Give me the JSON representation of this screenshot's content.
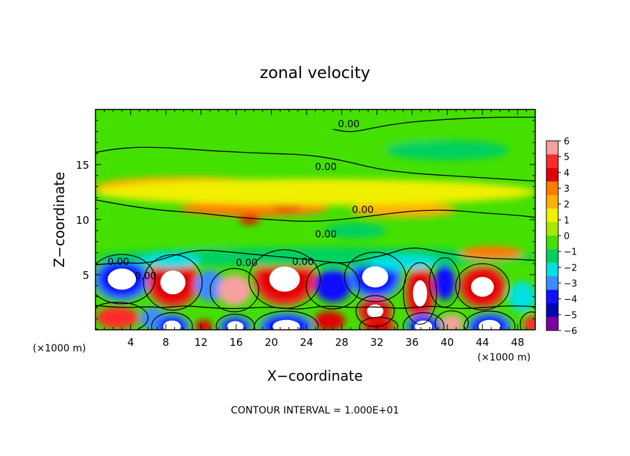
{
  "chart_data": {
    "type": "heatmap",
    "title": "zonal velocity",
    "xlabel": "X−coordinate",
    "ylabel": "Z−coordinate",
    "x_unit_left": "(×1000 m)",
    "x_unit_right": "(×1000 m)",
    "footer": "CONTOUR INTERVAL = 1.000E+01",
    "xlim": [
      0,
      50
    ],
    "ylim": [
      0,
      20
    ],
    "x_ticks": [
      4,
      8,
      12,
      16,
      20,
      24,
      28,
      32,
      36,
      40,
      44,
      48
    ],
    "y_ticks": [
      5,
      10,
      15
    ],
    "colorbar": {
      "ticks": [
        6,
        5,
        4,
        3,
        2,
        1,
        0,
        -1,
        -2,
        -3,
        -4,
        -5,
        -6
      ],
      "colors": [
        "#f7a0a0",
        "#ff2a2a",
        "#e00000",
        "#ff7a00",
        "#ffb000",
        "#f0f000",
        "#a6e800",
        "#44e000",
        "#00d060",
        "#00e0e0",
        "#3c8cff",
        "#1010ff",
        "#0000b8",
        "#7a00a0"
      ]
    },
    "contour_labels": [
      {
        "text": "0.00",
        "x": 28.8,
        "z": 18.4
      },
      {
        "text": "0.00",
        "x": 26.2,
        "z": 14.5
      },
      {
        "text": "0.00",
        "x": 30.4,
        "z": 10.6
      },
      {
        "text": "0.00",
        "x": 26.2,
        "z": 8.4
      },
      {
        "text": "0.00",
        "x": 23.6,
        "z": 5.9
      },
      {
        "text": "0.00",
        "x": 2.6,
        "z": 5.9
      },
      {
        "text": "0.00",
        "x": 5.7,
        "z": 4.6
      },
      {
        "text": "0.00",
        "x": 17.2,
        "z": 5.8
      }
    ],
    "features": [
      {
        "kind": "blob",
        "value": -9,
        "x": 3.0,
        "z": 4.6,
        "rx": 2.6,
        "rz": 1.6
      },
      {
        "kind": "blob",
        "value": 9,
        "x": 8.8,
        "z": 4.3,
        "rx": 2.3,
        "rz": 1.8
      },
      {
        "kind": "blob",
        "value": -4,
        "x": 13.0,
        "z": 4.0,
        "rx": 1.7,
        "rz": 1.4
      },
      {
        "kind": "blob",
        "value": 6,
        "x": 15.8,
        "z": 3.6,
        "rx": 1.9,
        "rz": 1.4
      },
      {
        "kind": "blob",
        "value": 10,
        "x": 21.5,
        "z": 4.6,
        "rx": 2.8,
        "rz": 1.9
      },
      {
        "kind": "blob",
        "value": -5,
        "x": 27.0,
        "z": 4.0,
        "rx": 2.1,
        "rz": 1.5
      },
      {
        "kind": "blob",
        "value": -10,
        "x": 31.8,
        "z": 4.8,
        "rx": 2.4,
        "rz": 1.6
      },
      {
        "kind": "blob",
        "value": 8,
        "x": 36.9,
        "z": 3.3,
        "rx": 1.3,
        "rz": 2.0
      },
      {
        "kind": "blob",
        "value": -5,
        "x": 39.7,
        "z": 4.3,
        "rx": 1.2,
        "rz": 1.6
      },
      {
        "kind": "blob",
        "value": 8,
        "x": 44.0,
        "z": 3.9,
        "rx": 2.1,
        "rz": 1.5
      },
      {
        "kind": "blob",
        "value": -3,
        "x": 48.5,
        "z": 3.0,
        "rx": 1.6,
        "rz": 1.4
      },
      {
        "kind": "blob",
        "value": 5,
        "x": 2.5,
        "z": 1.1,
        "rx": 2.4,
        "rz": 1.0
      },
      {
        "kind": "blob",
        "value": -4,
        "x": 6.5,
        "z": 1.0,
        "rx": 1.5,
        "rz": 1.0
      },
      {
        "kind": "blob",
        "value": -10,
        "x": 8.7,
        "z": 0.3,
        "rx": 1.6,
        "rz": 0.9
      },
      {
        "kind": "blob",
        "value": 4,
        "x": 12.3,
        "z": 0.3,
        "rx": 1.0,
        "rz": 0.6
      },
      {
        "kind": "blob",
        "value": -9,
        "x": 15.9,
        "z": 0.3,
        "rx": 1.5,
        "rz": 0.8
      },
      {
        "kind": "blob",
        "value": -10,
        "x": 21.7,
        "z": 0.3,
        "rx": 2.5,
        "rz": 1.0
      },
      {
        "kind": "blob",
        "value": 4,
        "x": 26.6,
        "z": 0.8,
        "rx": 1.8,
        "rz": 0.9
      },
      {
        "kind": "blob",
        "value": 9,
        "x": 31.8,
        "z": 1.7,
        "rx": 1.5,
        "rz": 1.0
      },
      {
        "kind": "blob",
        "value": 7,
        "x": 32.2,
        "z": 0.3,
        "rx": 1.5,
        "rz": 0.6
      },
      {
        "kind": "blob",
        "value": -10,
        "x": 37.3,
        "z": 0.3,
        "rx": 1.6,
        "rz": 0.9
      },
      {
        "kind": "blob",
        "value": 6,
        "x": 40.5,
        "z": 0.6,
        "rx": 1.3,
        "rz": 0.8
      },
      {
        "kind": "blob",
        "value": -10,
        "x": 44.8,
        "z": 0.3,
        "rx": 2.0,
        "rz": 1.0
      },
      {
        "kind": "blob",
        "value": 5,
        "x": 49.6,
        "z": 0.5,
        "rx": 0.9,
        "rz": 0.8
      },
      {
        "kind": "band",
        "value": -2.5,
        "x": 25.0,
        "z": 6.6,
        "rx": 25.0,
        "rz": 0.9
      },
      {
        "kind": "band",
        "value": -3,
        "x": 8.5,
        "z": 6.3,
        "rx": 3.5,
        "rz": 0.7
      },
      {
        "kind": "band",
        "value": -3,
        "x": 35.0,
        "z": 6.1,
        "rx": 4.0,
        "rz": 0.7
      },
      {
        "kind": "band",
        "value": -2,
        "x": 29.5,
        "z": 9.0,
        "rx": 3.5,
        "rz": 0.7
      },
      {
        "kind": "band",
        "value": -1.5,
        "x": 12.5,
        "z": 8.1,
        "rx": 3.5,
        "rz": 0.6
      },
      {
        "kind": "band",
        "value": 2.5,
        "x": 18.0,
        "z": 11.0,
        "rx": 8.5,
        "rz": 0.7
      },
      {
        "kind": "band",
        "value": 3.5,
        "x": 21.8,
        "z": 11.4,
        "rx": 1.8,
        "rz": 0.6
      },
      {
        "kind": "band",
        "value": 4,
        "x": 17.5,
        "z": 10.0,
        "rx": 1.2,
        "rz": 0.4
      },
      {
        "kind": "band",
        "value": 2,
        "x": 35.0,
        "z": 10.9,
        "rx": 6.0,
        "rz": 0.7
      },
      {
        "kind": "band",
        "value": 3,
        "x": 45.0,
        "z": 7.0,
        "rx": 3.5,
        "rz": 0.6
      },
      {
        "kind": "band",
        "value": -1.5,
        "x": 26.0,
        "z": 16.8,
        "rx": 16.0,
        "rz": 1.0
      },
      {
        "kind": "band",
        "value": -2,
        "x": 40.0,
        "z": 16.3,
        "rx": 7.0,
        "rz": 0.9
      },
      {
        "kind": "band",
        "value": 1.5,
        "x": 10.0,
        "z": 13.0,
        "rx": 10.0,
        "rz": 0.9
      },
      {
        "kind": "band",
        "value": 1,
        "x": 25.0,
        "z": 12.5,
        "rx": 25.0,
        "rz": 1.2
      },
      {
        "kind": "band",
        "value": -1,
        "x": 25.0,
        "z": 19.3,
        "rx": 25.0,
        "rz": 0.8
      }
    ],
    "contours": [
      [
        [
          0,
          16.1
        ],
        [
          2,
          16.4
        ],
        [
          5,
          16.6
        ],
        [
          9,
          16.5
        ],
        [
          14,
          16.2
        ],
        [
          20,
          16.0
        ],
        [
          24,
          15.9
        ],
        [
          28,
          15.4
        ],
        [
          32,
          14.6
        ],
        [
          36,
          14.2
        ],
        [
          40,
          14.0
        ],
        [
          44,
          13.8
        ],
        [
          48,
          13.6
        ],
        [
          50,
          13.5
        ]
      ],
      [
        [
          27,
          18.2
        ],
        [
          29,
          17.9
        ],
        [
          32,
          18.4
        ],
        [
          35,
          18.8
        ],
        [
          38,
          19.0
        ],
        [
          42,
          19.2
        ],
        [
          46,
          19.3
        ],
        [
          50,
          19.3
        ]
      ],
      [
        [
          0,
          11.8
        ],
        [
          4,
          11.2
        ],
        [
          8,
          10.8
        ],
        [
          12,
          10.6
        ],
        [
          16,
          10.2
        ],
        [
          20,
          10.0
        ],
        [
          24,
          9.8
        ],
        [
          28,
          10.0
        ],
        [
          32,
          10.4
        ],
        [
          36,
          10.8
        ],
        [
          40,
          10.9
        ],
        [
          44,
          10.6
        ],
        [
          48,
          10.4
        ],
        [
          50,
          10.2
        ]
      ],
      [
        [
          0,
          5.9
        ],
        [
          3,
          6.1
        ],
        [
          6,
          6.0
        ],
        [
          9,
          6.8
        ],
        [
          12,
          7.3
        ],
        [
          16,
          7.0
        ],
        [
          20,
          6.7
        ],
        [
          24,
          6.4
        ],
        [
          28,
          6.0
        ],
        [
          30,
          6.3
        ],
        [
          33,
          6.8
        ],
        [
          36,
          7.6
        ],
        [
          40,
          6.9
        ],
        [
          44,
          6.5
        ],
        [
          48,
          6.4
        ],
        [
          50,
          6.3
        ]
      ],
      [
        [
          0,
          2.2
        ],
        [
          3,
          2.0
        ],
        [
          6,
          2.1
        ],
        [
          8,
          2.0
        ],
        [
          10,
          2.2
        ],
        [
          13,
          2.0
        ],
        [
          16,
          1.9
        ],
        [
          20,
          2.1
        ],
        [
          23,
          1.8
        ],
        [
          26,
          2.2
        ],
        [
          29,
          2.0
        ],
        [
          32,
          2.1
        ],
        [
          35,
          1.9
        ],
        [
          38,
          2.2
        ],
        [
          41,
          1.9
        ],
        [
          44,
          2.0
        ],
        [
          47,
          2.2
        ],
        [
          50,
          2.1
        ]
      ]
    ]
  }
}
